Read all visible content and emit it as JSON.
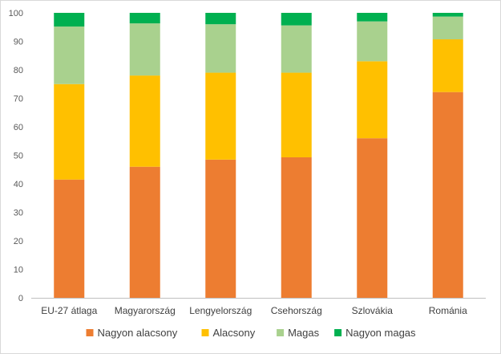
{
  "chart_data": {
    "type": "bar",
    "stacked": true,
    "categories": [
      "EU-27 átlaga",
      "Magyarország",
      "Lengyelország",
      "Csehország",
      "Szlovákia",
      "Románia"
    ],
    "series": [
      {
        "name": "Nagyon alacsony",
        "color": "#ED7D31",
        "values": [
          41.5,
          46,
          48.5,
          49.3,
          56,
          72.2
        ]
      },
      {
        "name": "Alacsony",
        "color": "#FFC000",
        "values": [
          33.5,
          32,
          30.5,
          29.7,
          27,
          18.5
        ]
      },
      {
        "name": "Magas",
        "color": "#A9D18E",
        "values": [
          20.2,
          18.3,
          17,
          16.6,
          14,
          8
        ]
      },
      {
        "name": "Nagyon magas",
        "color": "#00B050",
        "values": [
          4.8,
          3.7,
          4,
          4.4,
          3,
          1.3
        ]
      }
    ],
    "ylim": [
      0,
      100
    ],
    "yticks": [
      "0",
      "10",
      "20",
      "30",
      "40",
      "50",
      "60",
      "70",
      "80",
      "90",
      "100"
    ],
    "grid": false,
    "legend_position": "bottom"
  }
}
